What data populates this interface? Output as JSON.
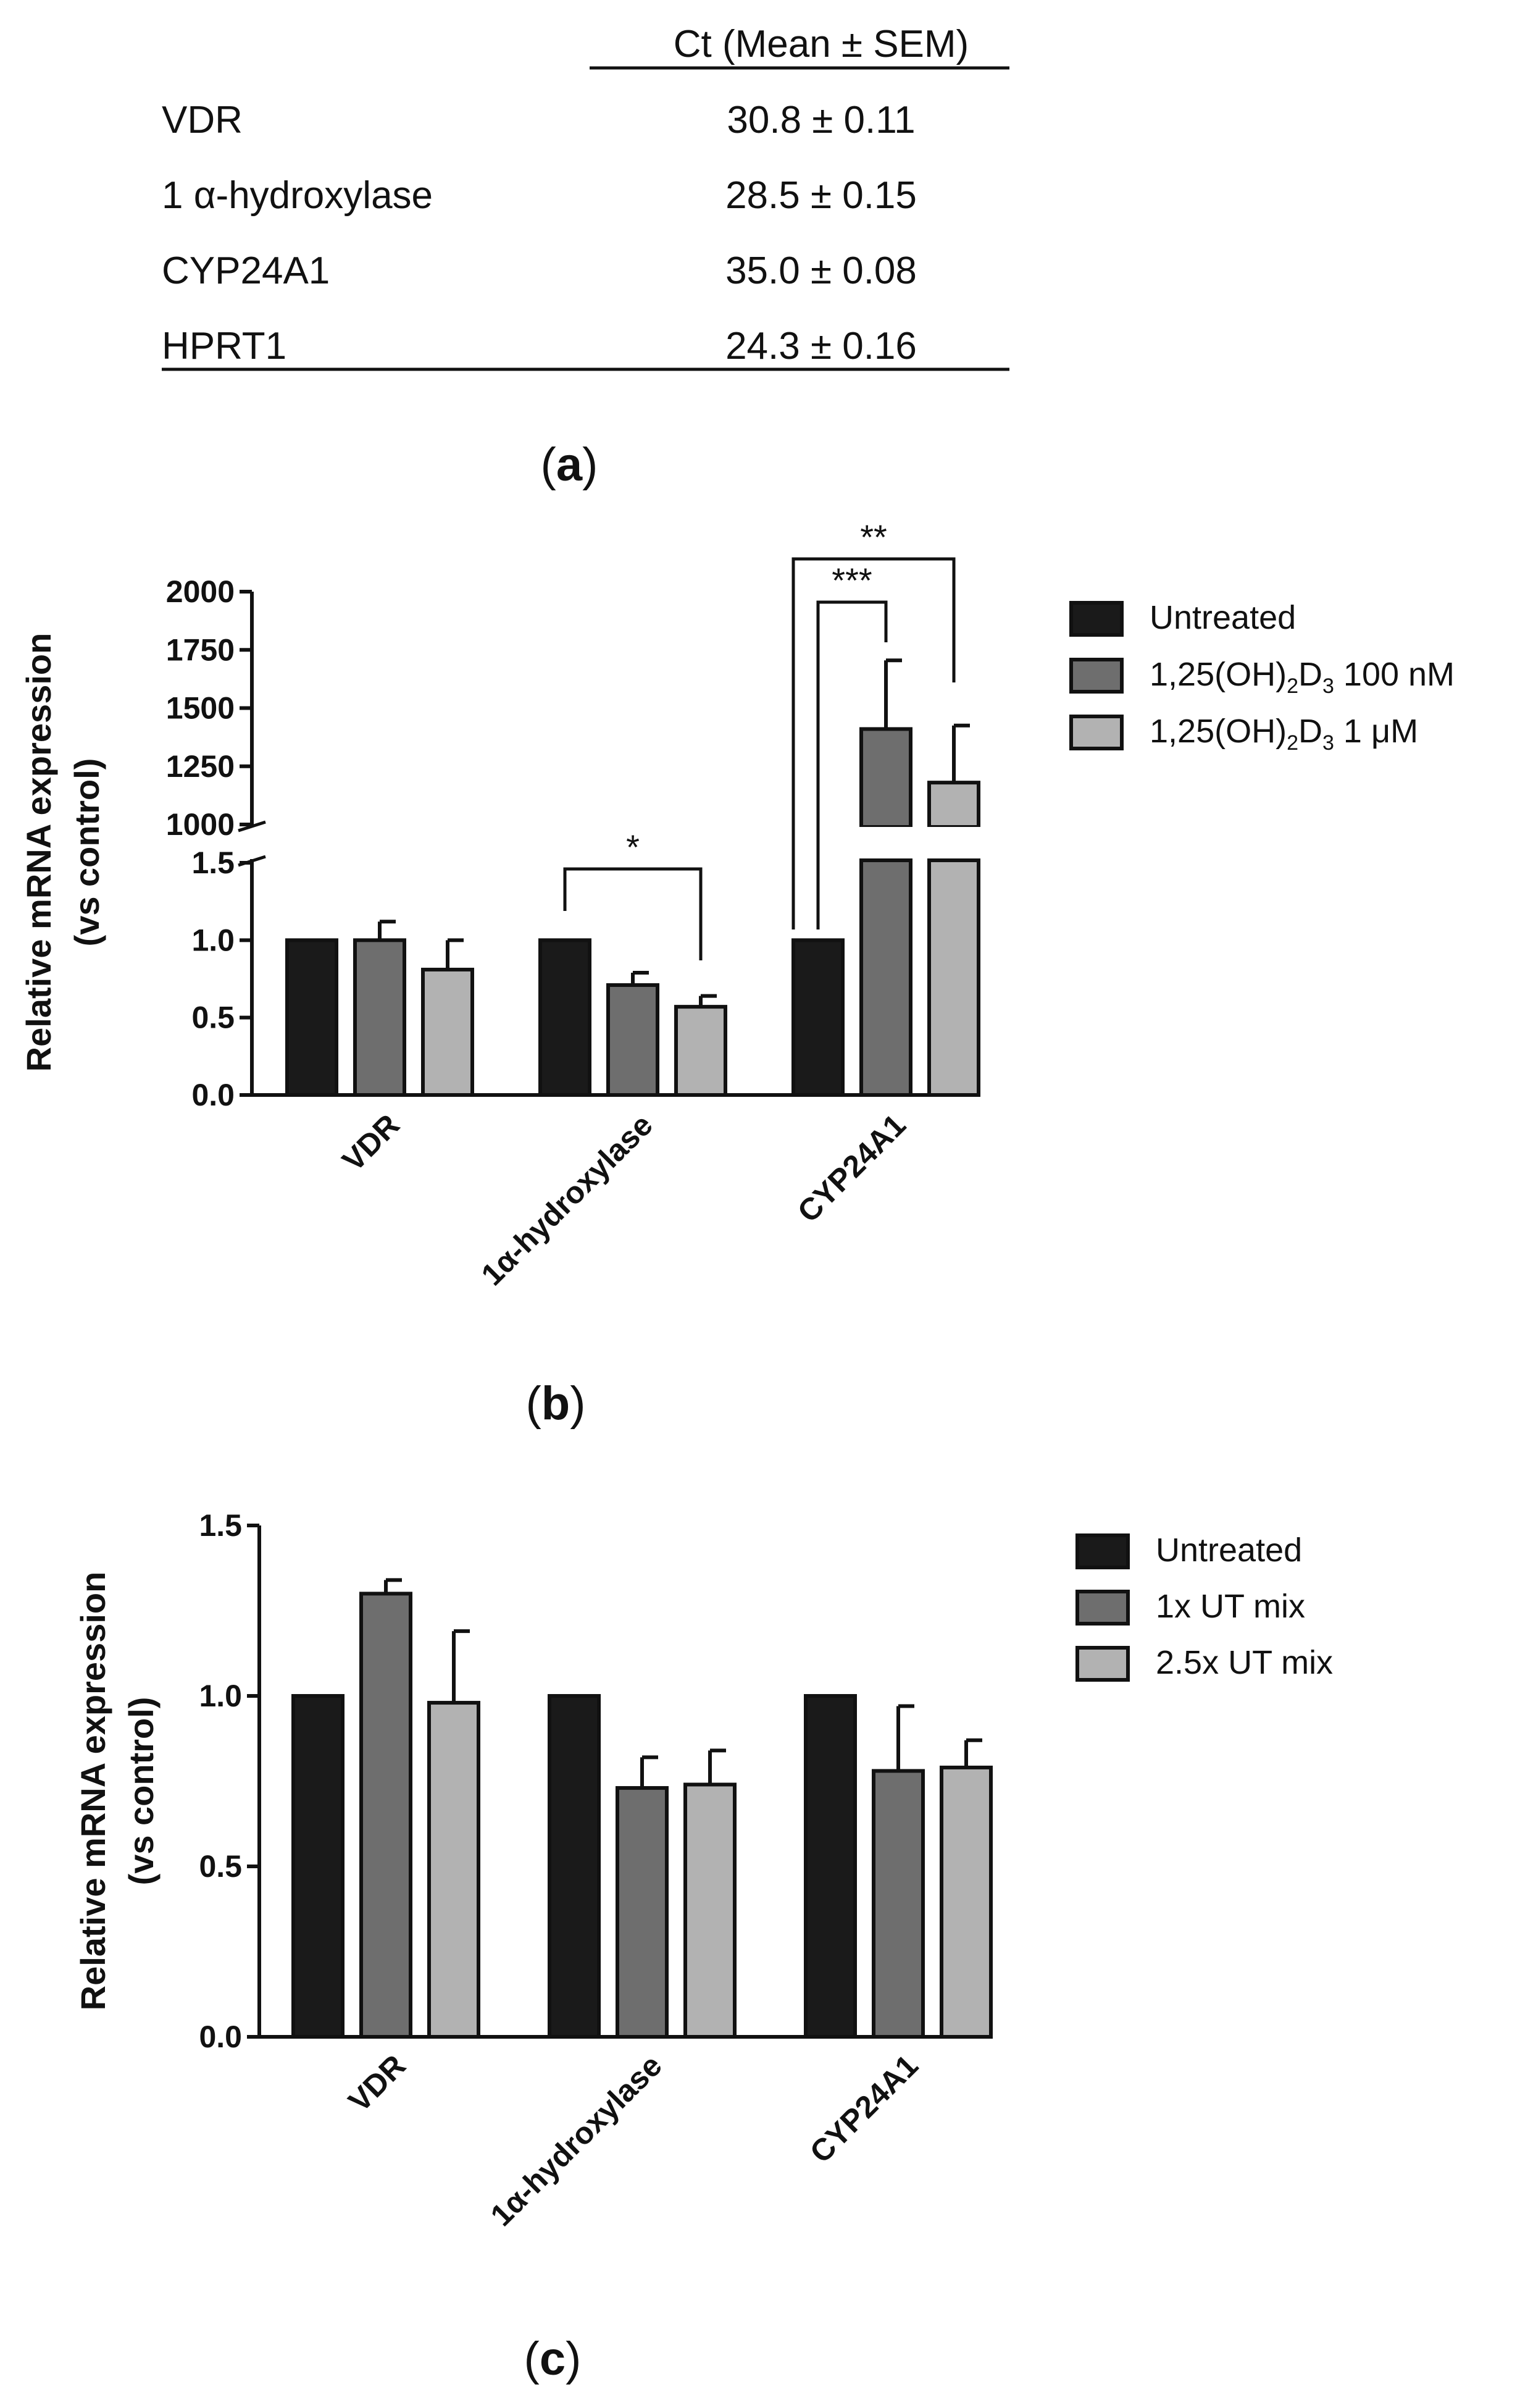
{
  "table": {
    "header": "Ct (Mean ± SEM)",
    "rows": [
      {
        "gene": "VDR",
        "value": "30.8 ± 0.11"
      },
      {
        "gene": "1 α-hydroxylase",
        "value": "28.5 ± 0.15"
      },
      {
        "gene": "CYP24A1",
        "value": "35.0 ± 0.08"
      },
      {
        "gene": "HPRT1",
        "value": "24.3 ± 0.16"
      }
    ]
  },
  "panel_labels": {
    "a": "a",
    "b": "b",
    "c": "c"
  },
  "colors": {
    "untreated": "#1a1a1a",
    "series2": "#6e6e6e",
    "series3": "#b2b2b2",
    "axis": "#111111"
  },
  "chart_data": [
    {
      "type": "bar",
      "panel": "b",
      "ylabel": "Relative mRNA expression",
      "ylabel2": "(vs control)",
      "categories": [
        "VDR",
        "1α-hydroxylase",
        "CYP24A1"
      ],
      "broken_axis": true,
      "ylim_lower": [
        0,
        1.5
      ],
      "ylim_upper": [
        1000,
        2000
      ],
      "yticks_lower": [
        "0.0",
        "0.5",
        "1.0",
        "1.5"
      ],
      "yticks_upper": [
        "1000",
        "1250",
        "1500",
        "1750",
        "2000"
      ],
      "series": [
        {
          "name": "Untreated",
          "values": [
            1.0,
            1.0,
            1.0
          ],
          "errors": [
            0,
            0,
            0
          ]
        },
        {
          "name": "1,25(OH)2D3 100 nM",
          "values": [
            1.0,
            0.71,
            1410
          ],
          "errors": [
            0.12,
            0.08,
            295
          ]
        },
        {
          "name": "1,25(OH)2D3 1 μM",
          "values": [
            0.81,
            0.57,
            1180
          ],
          "errors": [
            0.19,
            0.07,
            245
          ]
        }
      ],
      "significance": [
        {
          "category": 1,
          "from_series": 0,
          "to_series": 2,
          "label": "*"
        },
        {
          "category": 2,
          "from_series": 0,
          "to_series": 1,
          "label": "***"
        },
        {
          "category": 2,
          "from_series": 0,
          "to_series": 2,
          "label": "**"
        }
      ],
      "legend": [
        {
          "main": "Untreated",
          "sub1": "",
          "mid": "",
          "sub2": "",
          "tail": ""
        },
        {
          "main": "1,25(OH)",
          "sub1": "2",
          "mid": "D",
          "sub2": "3",
          "tail": " 100 nM"
        },
        {
          "main": "1,25(OH)",
          "sub1": "2",
          "mid": "D",
          "sub2": "3",
          "tail": " 1 μM"
        }
      ]
    },
    {
      "type": "bar",
      "panel": "c",
      "ylabel": "Relative mRNA expression",
      "ylabel2": "(vs control)",
      "categories": [
        "VDR",
        "1α-hydroxylase",
        "CYP24A1"
      ],
      "ylim": [
        0,
        1.5
      ],
      "yticks": [
        "0.0",
        "0.5",
        "1.0",
        "1.5"
      ],
      "series": [
        {
          "name": "Untreated",
          "values": [
            1.0,
            1.0,
            1.0
          ],
          "errors": [
            0,
            0,
            0
          ]
        },
        {
          "name": "1x UT mix",
          "values": [
            1.3,
            0.73,
            0.78
          ],
          "errors": [
            0.04,
            0.09,
            0.19
          ]
        },
        {
          "name": "2.5x UT mix",
          "values": [
            0.98,
            0.74,
            0.79
          ],
          "errors": [
            0.21,
            0.1,
            0.08
          ]
        }
      ],
      "legend": [
        "Untreated",
        "1x UT mix",
        "2.5x UT mix"
      ]
    }
  ]
}
